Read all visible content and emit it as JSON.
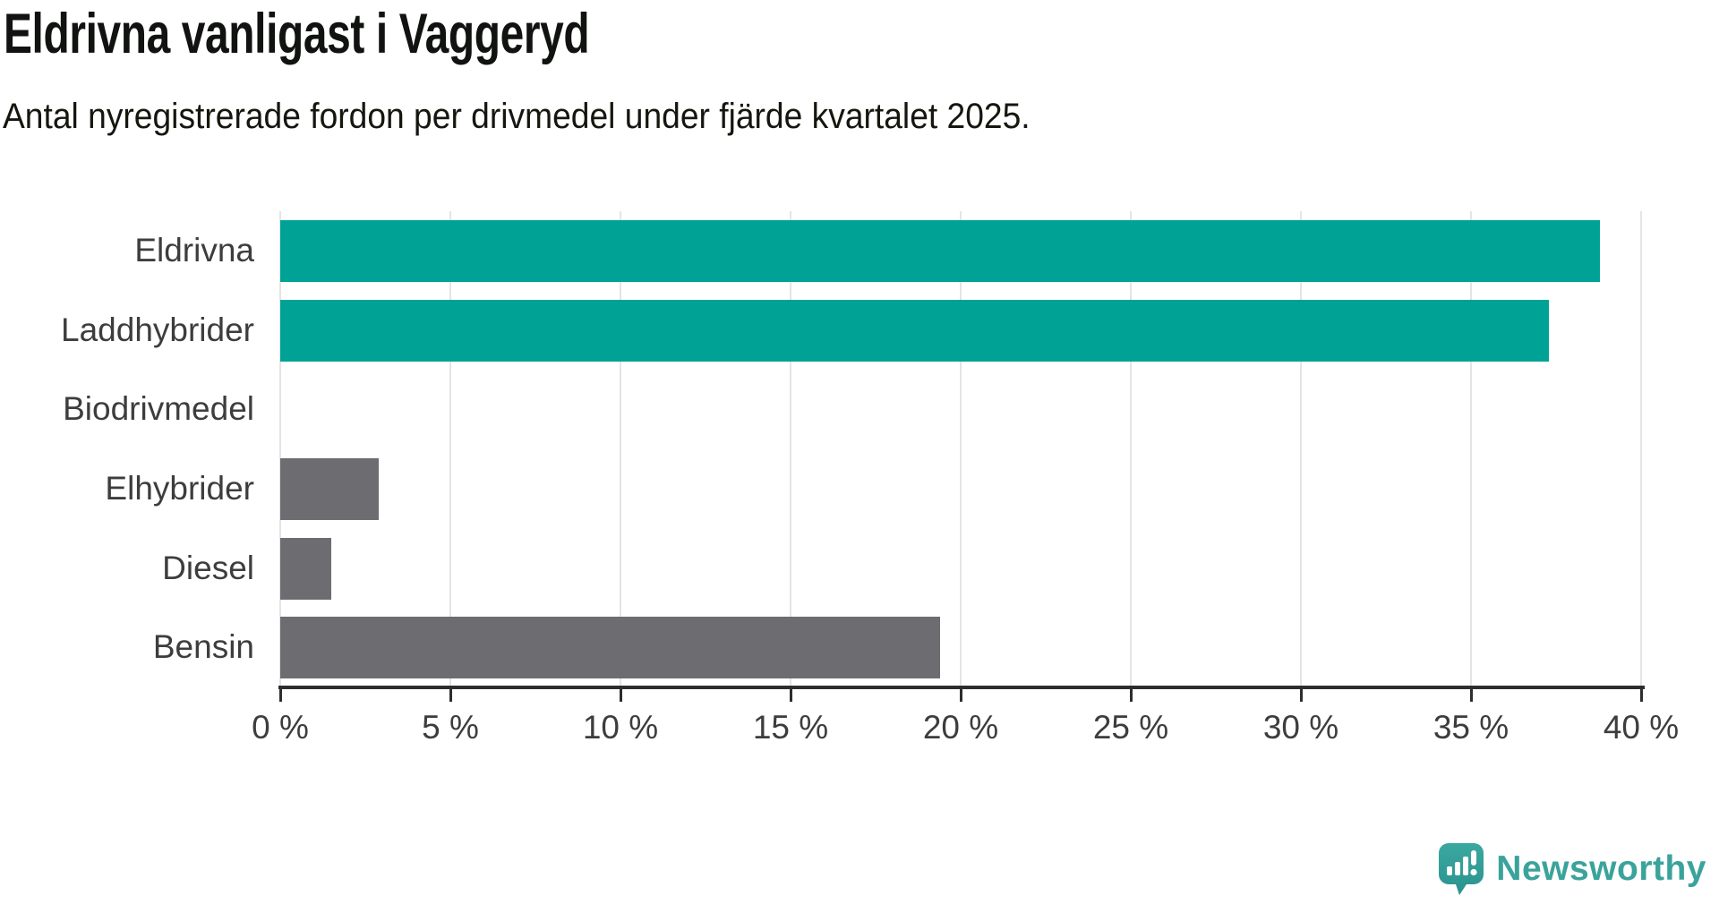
{
  "chart": {
    "title": "Eldrivna vanligast i Vaggeryd",
    "subtitle": "Antal nyregistrerade fordon per drivmedel under fjärde kvartalet 2025."
  },
  "chart_data": {
    "type": "bar",
    "orientation": "horizontal",
    "title": "Eldrivna vanligast i Vaggeryd",
    "subtitle": "Antal nyregistrerade fordon per drivmedel under fjärde kvartalet 2025.",
    "categories": [
      "Eldrivna",
      "Laddhybrider",
      "Biodrivmedel",
      "Elhybrider",
      "Diesel",
      "Bensin"
    ],
    "values": [
      38.8,
      37.3,
      0,
      2.9,
      1.5,
      19.4
    ],
    "unit": "%",
    "xlim": [
      0,
      40
    ],
    "xticks": [
      0,
      5,
      10,
      15,
      20,
      25,
      30,
      35,
      40
    ],
    "xtick_suffix": " %",
    "grid": true,
    "legend": "none",
    "bar_colors": [
      "#00a296",
      "#00a296",
      "#6d6c71",
      "#6d6c71",
      "#6d6c71",
      "#6d6c71"
    ],
    "gridline_color": "#e4e4e4",
    "axis_color": "#2d2d2d"
  },
  "branding": {
    "logo_text": "Newsworthy",
    "logo_color": "#3aa39b",
    "icon_name": "newsworthy-chart-bubble-icon",
    "icon_color_top": "#3aa8a0",
    "icon_color_bottom": "#2b928e"
  }
}
